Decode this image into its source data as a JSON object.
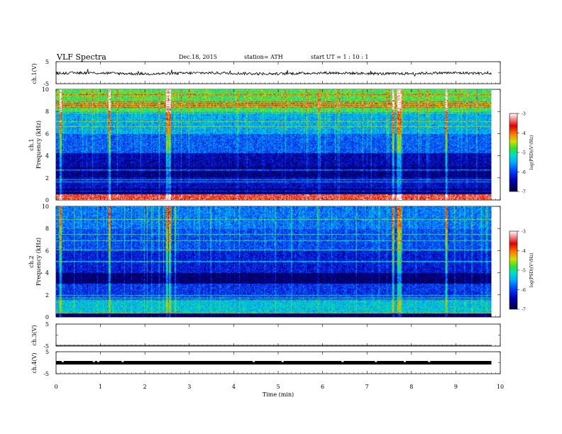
{
  "header": {
    "title": "VLF  Spectra",
    "date": "Dec.18, 2015",
    "station": "station= ATH",
    "start": "start  UT =   1  : 10 : 1"
  },
  "colors": {
    "ch1_trace": "#000000",
    "ch4_trace": "#000000",
    "colormap": [
      "#000040",
      "#0000b0",
      "#0040ff",
      "#00b0ff",
      "#00e0c0",
      "#30e030",
      "#d0e000",
      "#ff8000",
      "#e00000",
      "#ffffff"
    ]
  },
  "chart_data": [
    {
      "type": "line",
      "id": "ch1",
      "ylabel": "ch.1(V)",
      "yticks": [
        "5",
        "-5"
      ],
      "ylim": [
        -5,
        5
      ],
      "xlim": [
        0,
        10
      ],
      "data_extent_min": [
        0,
        9.8
      ],
      "description_mean_V": -0.3,
      "noise_amplitude_V": 0.6
    },
    {
      "type": "heatmap",
      "id": "ch1-spec",
      "ylabel": "Frequency (kHz)",
      "channel": "ch.1",
      "yticks": [
        "0",
        "2",
        "4",
        "6",
        "8",
        "10"
      ],
      "ylim": [
        0,
        10
      ],
      "xlim": [
        0,
        10
      ],
      "data_extent_min": [
        0,
        9.8
      ],
      "colorbar": {
        "label": "log(PSD)(V²/Hz)",
        "ticks": [
          "-3",
          "-4",
          "-5",
          "-6",
          "-7"
        ],
        "range": [
          -7,
          -3
        ]
      },
      "bands_kHz_logPSD": [
        {
          "from": 0,
          "to": 0.5,
          "value": -3.6
        },
        {
          "from": 0.5,
          "to": 1.0,
          "value": -6.8
        },
        {
          "from": 1.0,
          "to": 2.0,
          "value": -6.5
        },
        {
          "from": 2.0,
          "to": 3.0,
          "value": -6.8
        },
        {
          "from": 3.0,
          "to": 4.2,
          "value": -6.6
        },
        {
          "from": 4.2,
          "to": 6.0,
          "value": -6.0
        },
        {
          "from": 6.0,
          "to": 8.0,
          "value": -5.6
        },
        {
          "from": 8.0,
          "to": 10.0,
          "value": -5.0
        }
      ],
      "sferic_bursts_min": [
        0.1,
        1.2,
        2.5,
        2.55,
        7.6,
        7.7,
        7.75,
        8.8
      ]
    },
    {
      "type": "heatmap",
      "id": "ch2-spec",
      "ylabel": "Frequency (kHz)",
      "channel": "ch.2",
      "yticks": [
        "0",
        "2",
        "4",
        "6",
        "8",
        "10"
      ],
      "ylim": [
        0,
        10
      ],
      "xlim": [
        0,
        10
      ],
      "data_extent_min": [
        0,
        9.8
      ],
      "colorbar": {
        "label": "log(PSD)(V²/Hz)",
        "ticks": [
          "-3",
          "-4",
          "-5",
          "-6",
          "-7"
        ],
        "range": [
          -7,
          -3
        ]
      },
      "bands_kHz_logPSD": [
        {
          "from": 0,
          "to": 0.3,
          "value": -6.9
        },
        {
          "from": 0.3,
          "to": 1.5,
          "value": -5.4
        },
        {
          "from": 1.5,
          "to": 3.0,
          "value": -6.2
        },
        {
          "from": 3.0,
          "to": 4.0,
          "value": -6.9
        },
        {
          "from": 4.0,
          "to": 6.0,
          "value": -6.4
        },
        {
          "from": 6.0,
          "to": 8.0,
          "value": -6.1
        },
        {
          "from": 8.0,
          "to": 10.0,
          "value": -5.9
        }
      ],
      "sferic_bursts_min": [
        0.1,
        1.2,
        2.5,
        2.55,
        7.6,
        7.7,
        7.75,
        8.8
      ]
    },
    {
      "type": "line",
      "id": "ch3",
      "ylabel": "ch.3(V)",
      "yticks": [
        "5",
        "-5"
      ],
      "ylim": [
        -5,
        5
      ],
      "xlim": [
        0,
        10
      ],
      "data_extent_min": [
        0,
        9.8
      ],
      "constant_V": -5
    },
    {
      "type": "line",
      "id": "ch4",
      "ylabel": "ch.4(V)",
      "yticks": [
        "5",
        "-5"
      ],
      "ylim": [
        -5,
        5
      ],
      "xlim": [
        0,
        10
      ],
      "data_extent_min": [
        0,
        9.8
      ],
      "constant_V": 0,
      "gaps_min": [
        0.15,
        0.85,
        0.95,
        1.5,
        4.45,
        5.1,
        6.45,
        7.2,
        7.85,
        8.4
      ]
    }
  ],
  "x_axis": {
    "label": "Time  (min)",
    "ticks": [
      "0",
      "1",
      "2",
      "3",
      "4",
      "5",
      "6",
      "7",
      "8",
      "9",
      "10"
    ],
    "range": [
      0,
      10
    ]
  },
  "spec_labels": {
    "ch1_channel": "ch.1",
    "ch1_freq": "Frequency  (kHz)",
    "ch2_channel": "ch.2",
    "ch2_freq": "Frequency  (kHz)",
    "cb1": "log(PSD)(V²/Hz)",
    "cb2": "log(PSD)(V²/Hz)"
  },
  "line_labels": {
    "ch1": "ch.1(V)",
    "ch3": "ch.3(V)",
    "ch4": "ch.4(V)"
  }
}
